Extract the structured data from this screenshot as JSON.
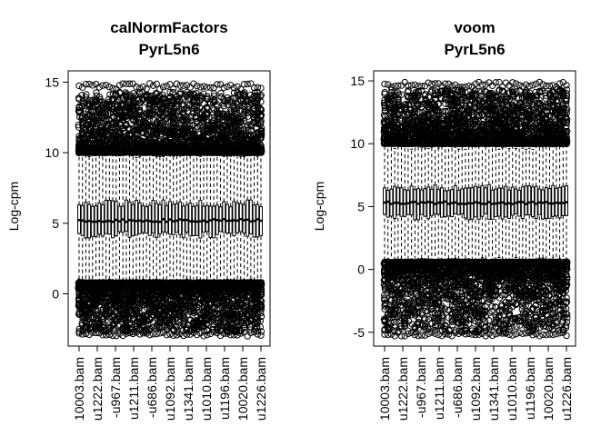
{
  "chart_data": [
    {
      "type": "boxplot",
      "title_line1": "calNormFactors",
      "title_line2": "PyrL5n6",
      "ylabel": "Log-cpm",
      "ylim": [
        -3.7,
        15.8
      ],
      "yticks": [
        0,
        5,
        10,
        15
      ],
      "categories": [
        "10003.bam",
        "u1222.bam",
        "-u967.bam",
        "u1211.bam",
        "-u686.bam",
        "u1092.bam",
        "u1341.bam",
        "u1010.bam",
        "u1196.bam",
        "10020.bam",
        "u1226.bam"
      ],
      "n_boxes": 55,
      "box_stats": {
        "median": 5.2,
        "q1": 4.2,
        "q3": 6.4,
        "whisker_low": 0.8,
        "whisker_high": 9.9,
        "outliers_low_range": [
          -3.0,
          0.8
        ],
        "outliers_high_range": [
          10.0,
          14.9
        ]
      }
    },
    {
      "type": "boxplot",
      "title_line1": "voom",
      "title_line2": "PyrL5n6",
      "ylabel": "Log-cpm",
      "ylim": [
        -6.1,
        15.8
      ],
      "yticks": [
        -5,
        0,
        5,
        10,
        15
      ],
      "categories": [
        "10003.bam",
        "u1222.bam",
        "-u967.bam",
        "u1211.bam",
        "-u686.bam",
        "u1092.bam",
        "u1341.bam",
        "u1010.bam",
        "u1196.bam",
        "10020.bam",
        "u1226.bam"
      ],
      "n_boxes": 55,
      "box_stats": {
        "median": 5.3,
        "q1": 4.2,
        "q3": 6.5,
        "whisker_low": 0.7,
        "whisker_high": 9.8,
        "outliers_low_range": [
          -5.3,
          0.6
        ],
        "outliers_high_range": [
          10.0,
          14.9
        ]
      }
    }
  ]
}
